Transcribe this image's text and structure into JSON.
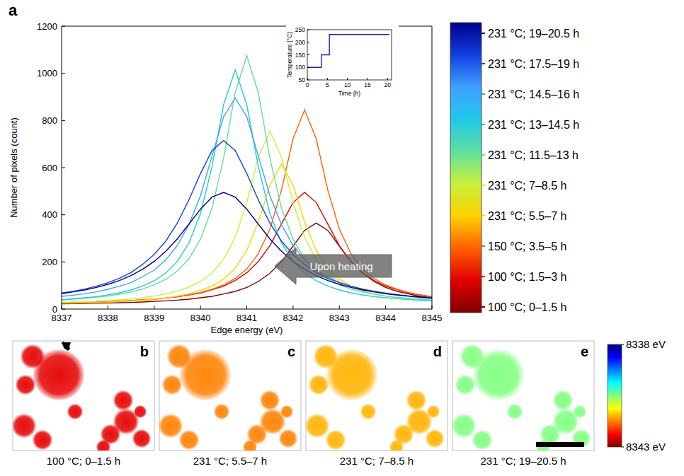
{
  "chart_data": [
    {
      "type": "line",
      "panel_label": "a",
      "xlabel": "Edge energy (eV)",
      "ylabel": "Number of pixels (count)",
      "annotations": [
        "Upon heating"
      ],
      "legend": "right",
      "x": [
        8337,
        8337.25,
        8337.5,
        8337.75,
        8338,
        8338.25,
        8338.5,
        8338.75,
        8339,
        8339.25,
        8339.5,
        8339.75,
        8340,
        8340.25,
        8340.5,
        8340.75,
        8341,
        8341.25,
        8341.5,
        8341.75,
        8342,
        8342.25,
        8342.5,
        8342.75,
        8343,
        8343.25,
        8343.5,
        8343.75,
        8344,
        8344.25,
        8344.5,
        8344.75,
        8345
      ],
      "xlim": [
        8337,
        8345
      ],
      "xticks": [
        8337,
        8338,
        8339,
        8340,
        8341,
        8342,
        8343,
        8344,
        8345
      ],
      "ylim": [
        0,
        1200
      ],
      "yticks": [
        0,
        200,
        400,
        600,
        800,
        1000,
        1200
      ],
      "series": [
        {
          "name": "100 °C; 0–1.5 h",
          "color": "#800000",
          "values": [
            22,
            23,
            24,
            25,
            26,
            27,
            28,
            30,
            33,
            35,
            38,
            42,
            48,
            54,
            64,
            75,
            92,
            117,
            152,
            201,
            267,
            334,
            365,
            334,
            267,
            201,
            152,
            117,
            92,
            75,
            64,
            54,
            48
          ]
        },
        {
          "name": "100 °C; 1.5–3 h",
          "color": "#e00000",
          "values": [
            26,
            27,
            28,
            29,
            31,
            33,
            36,
            39,
            42,
            47,
            52,
            60,
            68,
            82,
            97,
            121,
            154,
            202,
            269,
            361,
            452,
            495,
            452,
            361,
            269,
            202,
            154,
            121,
            97,
            82,
            68,
            60,
            52
          ]
        },
        {
          "name": "150 °C; 3.5–5 h",
          "color": "#ff6000",
          "values": [
            26,
            27,
            28,
            29,
            32,
            33,
            36,
            39,
            42,
            47,
            52,
            60,
            70,
            84,
            102,
            130,
            170,
            235,
            339,
            505,
            722,
            845,
            722,
            505,
            339,
            235,
            170,
            130,
            102,
            84,
            70,
            60,
            52
          ]
        },
        {
          "name": "231 °C; 5.5–7 h",
          "color": "#ffd200",
          "values": [
            25,
            25,
            27,
            28,
            30,
            32,
            35,
            38,
            42,
            47,
            55,
            65,
            78,
            98,
            127,
            174,
            249,
            369,
            526,
            615,
            526,
            369,
            249,
            174,
            127,
            98,
            78,
            65,
            55,
            47,
            42,
            38,
            35
          ]
        },
        {
          "name": "231 °C; 7–8.5 h",
          "color": "#c8f03c",
          "values": [
            28,
            30,
            31,
            34,
            36,
            39,
            43,
            48,
            55,
            64,
            76,
            93,
            117,
            153,
            211,
            304,
            452,
            645,
            755,
            645,
            452,
            304,
            211,
            153,
            117,
            93,
            76,
            64,
            55,
            48,
            43,
            39,
            36
          ]
        },
        {
          "name": "231 °C; 11.5–13 h",
          "color": "#60e0a0",
          "values": [
            38,
            42,
            46,
            50,
            55,
            63,
            72,
            85,
            103,
            126,
            161,
            213,
            296,
            428,
            640,
            918,
            1075,
            918,
            640,
            428,
            296,
            213,
            161,
            126,
            103,
            85,
            72,
            63,
            55,
            50,
            46,
            42,
            38
          ]
        },
        {
          "name": "231 °C; 13–14.5 h",
          "color": "#20c8e8",
          "values": [
            40,
            44,
            48,
            53,
            60,
            69,
            81,
            98,
            120,
            153,
            202,
            280,
            405,
            605,
            867,
            1015,
            867,
            605,
            405,
            280,
            202,
            153,
            120,
            98,
            81,
            69,
            60,
            53,
            48,
            44,
            40,
            37,
            35
          ]
        },
        {
          "name": "231 °C; 14.5–16 h",
          "color": "#40a0ff",
          "values": [
            54,
            59,
            65,
            73,
            84,
            97,
            112,
            138,
            165,
            209,
            270,
            358,
            481,
            649,
            816,
            895,
            816,
            649,
            481,
            358,
            270,
            209,
            165,
            138,
            112,
            97,
            84,
            73,
            65,
            59,
            54,
            48,
            45
          ]
        },
        {
          "name": "231 °C; 17.5–19 h",
          "color": "#1040e0",
          "values": [
            68,
            75,
            85,
            97,
            112,
            131,
            155,
            190,
            232,
            288,
            365,
            463,
            575,
            673,
            715,
            673,
            575,
            463,
            365,
            288,
            232,
            190,
            155,
            131,
            112,
            97,
            85,
            75,
            68,
            61,
            56,
            51,
            48
          ]
        },
        {
          "name": "231 °C; 19–20.5 h",
          "color": "#00008b",
          "values": [
            65,
            73,
            81,
            92,
            105,
            121,
            142,
            169,
            202,
            245,
            298,
            360,
            424,
            475,
            495,
            475,
            424,
            360,
            298,
            245,
            202,
            169,
            142,
            121,
            105,
            92,
            81,
            73,
            65,
            60,
            55,
            51,
            47
          ]
        }
      ]
    },
    {
      "type": "line",
      "xlabel": "Time (h)",
      "ylabel": "Temperature (°C)",
      "x": [
        0,
        3.5,
        3.5,
        5.5,
        5.5,
        20.5
      ],
      "xlim": [
        0,
        21
      ],
      "xticks": [
        0,
        5,
        10,
        15,
        20
      ],
      "ylim": [
        50,
        250
      ],
      "yticks": [
        50,
        100,
        150,
        200,
        250
      ],
      "series": [
        {
          "color": "#1f1fd0",
          "values": [
            100,
            100,
            150,
            150,
            231,
            231
          ]
        }
      ]
    },
    {
      "type": "heatmap",
      "colorbar": {
        "range": [
          8338,
          8343
        ],
        "ticks": [
          {
            "value": 8338,
            "label": "8338 eV"
          },
          {
            "value": 8343,
            "label": "8343 eV"
          }
        ]
      },
      "panels": [
        {
          "label": "b",
          "caption": "100 °C; 0–1.5 h"
        },
        {
          "label": "c",
          "caption": "231 °C; 5.5–7 h"
        },
        {
          "label": "d",
          "caption": "231 °C; 7–8.5 h"
        },
        {
          "label": "e",
          "caption": "231 °C; 19–20.5 h"
        }
      ]
    }
  ]
}
